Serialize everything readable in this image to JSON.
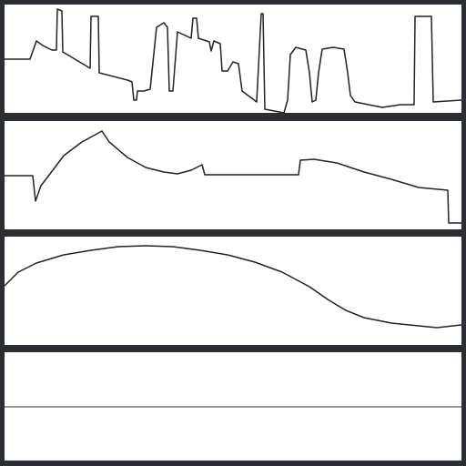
{
  "chart_data": [
    {
      "type": "line",
      "color": "#222222",
      "xlim": [
        0,
        502
      ],
      "ylim": [
        0,
        119
      ],
      "x": [
        0,
        28,
        35,
        42,
        52,
        57,
        58,
        63,
        64,
        94,
        95,
        103,
        104,
        135,
        140,
        142,
        145,
        146,
        153,
        160,
        167,
        175,
        179,
        181,
        185,
        190,
        205,
        207,
        211,
        213,
        225,
        227,
        230,
        237,
        239,
        245,
        251,
        257,
        261,
        277,
        282,
        284,
        286,
        307,
        311,
        314,
        320,
        331,
        335,
        338,
        342,
        345,
        349,
        361,
        373,
        377,
        380,
        385,
        415,
        435,
        450,
        451,
        469,
        471,
        502
      ],
      "values": [
        59,
        59,
        79,
        74,
        69,
        69,
        114,
        112,
        67,
        49,
        106,
        106,
        44,
        36,
        34,
        14,
        14,
        24,
        24,
        26,
        94,
        99,
        94,
        24,
        24,
        89,
        82,
        104,
        104,
        82,
        78,
        68,
        79,
        76,
        46,
        46,
        56,
        54,
        24,
        12,
        109,
        109,
        4,
        0,
        14,
        64,
        72,
        69,
        44,
        12,
        14,
        44,
        70,
        72,
        70,
        44,
        19,
        12,
        6,
        9,
        9,
        106,
        106,
        12,
        14
      ]
    },
    {
      "type": "line",
      "color": "#222222",
      "xlim": [
        0,
        502
      ],
      "ylim": [
        0,
        119
      ],
      "x": [
        0,
        31,
        34,
        40,
        50,
        65,
        85,
        107,
        115,
        135,
        155,
        175,
        190,
        205,
        217,
        220,
        323,
        325,
        340,
        365,
        395,
        425,
        455,
        487,
        488,
        502
      ],
      "values": [
        59,
        59,
        31,
        48,
        61,
        81,
        96,
        108,
        96,
        79,
        68,
        63,
        61,
        65,
        71,
        60,
        60,
        76,
        77,
        73,
        63,
        55,
        46,
        43,
        7,
        7
      ]
    },
    {
      "type": "line",
      "color": "#222222",
      "xlim": [
        0,
        502
      ],
      "ylim": [
        0,
        119
      ],
      "x": [
        0,
        15,
        35,
        65,
        95,
        125,
        155,
        185,
        215,
        245,
        275,
        305,
        335,
        355,
        375,
        395,
        425,
        455,
        475,
        502
      ],
      "values": [
        65,
        80,
        90,
        99,
        104,
        108,
        109,
        108,
        104,
        99,
        91,
        80,
        64,
        50,
        38,
        30,
        24,
        21,
        19,
        22
      ]
    },
    {
      "type": "line",
      "color": "#777777",
      "xlim": [
        0,
        502
      ],
      "ylim": [
        0,
        119
      ],
      "x": [
        0,
        502
      ],
      "values": [
        59,
        59
      ]
    }
  ]
}
